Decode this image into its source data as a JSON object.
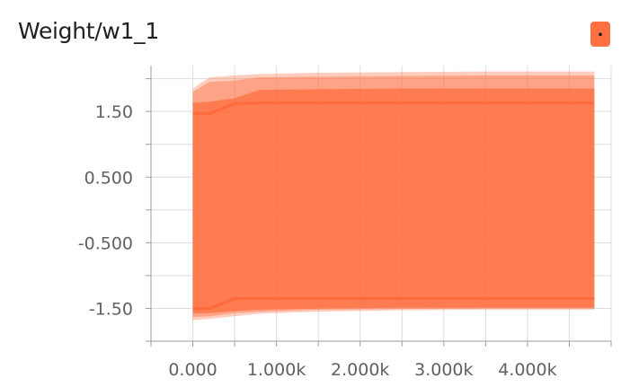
{
  "card": {
    "title": "Weight/w1_1",
    "legend_glyph": ".",
    "accent_color": "#ff7043"
  },
  "chart_data": {
    "type": "area",
    "title": "Weight/w1_1",
    "xlabel": "",
    "ylabel": "",
    "xlim": [
      -500,
      5000
    ],
    "ylim": [
      -2.0,
      2.2
    ],
    "x_ticks": [
      0,
      1000,
      2000,
      3000,
      4000
    ],
    "x_tick_labels": [
      "0.000",
      "1.000k",
      "2.000k",
      "3.000k",
      "4.000k"
    ],
    "y_ticks": [
      1.5,
      0.5,
      -0.5,
      -1.5
    ],
    "y_tick_labels": [
      "1.50",
      "0.500",
      "-0.500",
      "-1.50"
    ],
    "grid": true,
    "color": "#ff7043",
    "x": [
      0,
      200,
      500,
      800,
      1500,
      2500,
      3500,
      4800
    ],
    "bands": [
      {
        "level": "outer",
        "lower": [
          -1.68,
          -1.66,
          -1.62,
          -1.58,
          -1.55,
          -1.53,
          -1.52,
          -1.52
        ],
        "upper": [
          1.85,
          2.02,
          2.05,
          2.07,
          2.09,
          2.1,
          2.11,
          2.11
        ]
      },
      {
        "level": "middle",
        "lower": [
          -1.63,
          -1.62,
          -1.57,
          -1.55,
          -1.52,
          -1.51,
          -1.5,
          -1.5
        ],
        "upper": [
          1.8,
          1.95,
          1.97,
          2.02,
          2.03,
          2.04,
          2.05,
          2.05
        ]
      },
      {
        "level": "inner",
        "lower": [
          -1.58,
          -1.57,
          -1.54,
          -1.52,
          -1.5,
          -1.49,
          -1.49,
          -1.49
        ],
        "upper": [
          1.63,
          1.65,
          1.7,
          1.83,
          1.84,
          1.85,
          1.85,
          1.85
        ]
      }
    ],
    "lines": [
      {
        "name": "upper",
        "y": [
          1.47,
          1.47,
          1.62,
          1.63,
          1.63,
          1.63,
          1.63,
          1.63
        ]
      },
      {
        "name": "lower",
        "y": [
          -1.5,
          -1.5,
          -1.35,
          -1.35,
          -1.35,
          -1.35,
          -1.35,
          -1.35
        ]
      }
    ]
  }
}
